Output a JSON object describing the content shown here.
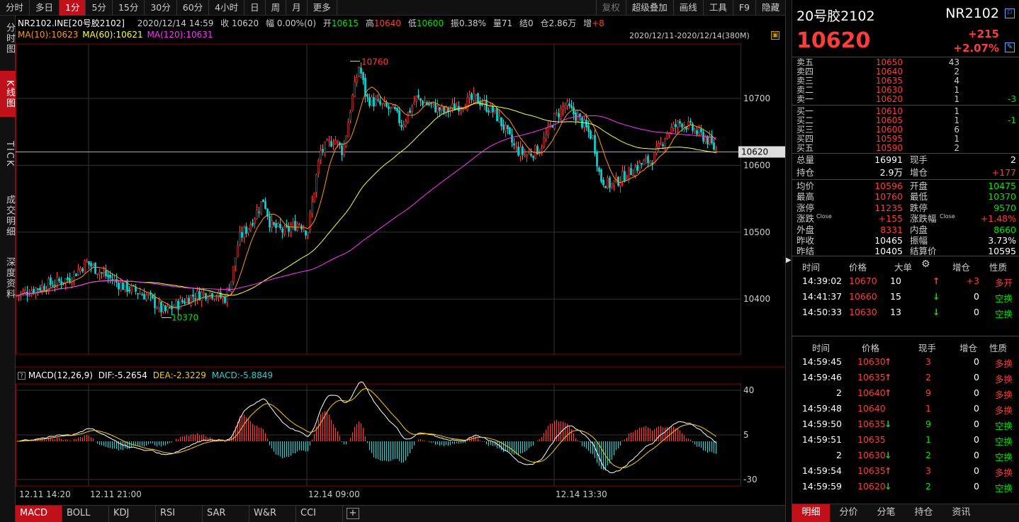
{
  "toolbar": {
    "periods": [
      "分时",
      "多日",
      "1分",
      "5分",
      "15分",
      "30分",
      "60分",
      "4小时",
      "日",
      "周",
      "月",
      "更多"
    ],
    "active_period": "1分",
    "right": [
      "复权",
      "超级叠加",
      "画线",
      "工具",
      "F9",
      "隐藏"
    ]
  },
  "left_tabs": [
    "分时图",
    "K线图",
    "TICK",
    "成交明细",
    "深度资料"
  ],
  "active_left_tab": "K线图",
  "info_line": {
    "symbol": "NR2102.INE[20号胶2102]",
    "datetime": "2020/12/14 14:59",
    "close_label": "收",
    "close": "10620",
    "change_label": "幅",
    "change": "0.00%(0)",
    "open_label": "开",
    "open": "10615",
    "high_label": "高",
    "high": "10640",
    "low_label": "低",
    "low": "10600",
    "amp_label": "振",
    "amp": "0.38%",
    "vol_label": "量",
    "vol": "71",
    "settle_label": "结",
    "settle": "0",
    "oi_label": "仓",
    "oi": "2.86万",
    "inc_label": "增",
    "inc": "+8"
  },
  "ma_line": {
    "ma10": "MA(10):10623",
    "ma60": "MA(60):10621",
    "ma120": "MA(120):10631",
    "ma10_color": "#ff9900",
    "ma60_color": "#ffff33",
    "ma120_color": "#ff33ff"
  },
  "date_range": "2020/12/11-2020/12/14(380M)",
  "lock_icon": "lock-icon",
  "price_axis": [
    "10700",
    "10600",
    "10500",
    "10400"
  ],
  "current_price_tag": "10620",
  "high_marker": "10760",
  "low_marker": "10370",
  "macd_info": {
    "title": "MACD(12,26,9)",
    "dif": "DIF:-5.2654",
    "dea": "DEA:-2.3229",
    "macd": "MACD:-5.8849"
  },
  "macd_axis": [
    "40",
    "5",
    "-30"
  ],
  "time_axis": [
    "12.11 14:20",
    "12.11 21:00",
    "12.14 09:00",
    "12.14 13:30"
  ],
  "bottom_tabs": [
    "MACD",
    "BOLL",
    "KDJ",
    "RSI",
    "SAR",
    "W&R",
    "CCI"
  ],
  "active_bottom_tab": "MACD",
  "quote": {
    "name": "20号胶2102",
    "code": "NR2102",
    "price": "10620",
    "change": "+215",
    "change_pct": "+2.07%",
    "edit_icon": "edit-icon"
  },
  "order_book": {
    "asks": [
      {
        "label": "卖五",
        "price": "10650",
        "vol": "43",
        "chg": ""
      },
      {
        "label": "卖四",
        "price": "10640",
        "vol": "2",
        "chg": ""
      },
      {
        "label": "卖三",
        "price": "10635",
        "vol": "4",
        "chg": ""
      },
      {
        "label": "卖二",
        "price": "10630",
        "vol": "1",
        "chg": ""
      },
      {
        "label": "卖一",
        "price": "10620",
        "vol": "1",
        "chg": "-3"
      }
    ],
    "bids": [
      {
        "label": "买一",
        "price": "10610",
        "vol": "1",
        "chg": ""
      },
      {
        "label": "买二",
        "price": "10605",
        "vol": "1",
        "chg": "-1"
      },
      {
        "label": "买三",
        "price": "10600",
        "vol": "6",
        "chg": ""
      },
      {
        "label": "买四",
        "price": "10595",
        "vol": "1",
        "chg": ""
      },
      {
        "label": "买五",
        "price": "10590",
        "vol": "2",
        "chg": ""
      }
    ]
  },
  "stats1": [
    {
      "l": "总量",
      "v": "16991",
      "l2": "现手",
      "v2": "2"
    },
    {
      "l": "持仓",
      "v": "2.9万",
      "l2": "增仓",
      "v2": "+177"
    }
  ],
  "stats2": [
    {
      "l": "均价",
      "v": "10596",
      "l2": "开盘",
      "v2": "10475"
    },
    {
      "l": "最高",
      "v": "10760",
      "l2": "最低",
      "v2": "10370"
    },
    {
      "l": "涨停",
      "v": "11235",
      "l2": "跌停",
      "v2": "9570"
    },
    {
      "l": "涨跌",
      "sub": "Close",
      "v": "+155",
      "l2": "涨跌幅",
      "sub2": "Close",
      "v2": "+1.48%"
    },
    {
      "l": "外盘",
      "v": "8331",
      "l2": "内盘",
      "v2": "8660"
    },
    {
      "l": "昨收",
      "v": "10465",
      "l2": "振幅",
      "v2": "3.73%"
    },
    {
      "l": "昨结",
      "v": "10405",
      "l2": "结算价",
      "v2": "10595"
    }
  ],
  "big_orders": {
    "headers": [
      "时间",
      "价格",
      "大单",
      "增仓",
      "性质"
    ],
    "settings_icon": "gear-icon",
    "rows": [
      {
        "t": "14:39:02",
        "p": "10670",
        "v": "10",
        "dir": "up",
        "inc": "+3",
        "nat": "多开"
      },
      {
        "t": "14:41:37",
        "p": "10660",
        "v": "15",
        "dir": "down",
        "inc": "0",
        "nat": "空换"
      },
      {
        "t": "14:50:33",
        "p": "10630",
        "v": "13",
        "dir": "down",
        "inc": "0",
        "nat": "空换"
      }
    ]
  },
  "ticks": {
    "headers": [
      "时间",
      "价格",
      "现手",
      "增仓",
      "性质"
    ],
    "rows": [
      {
        "t": "14:59:45",
        "p": "10630",
        "dir": "up",
        "v": "3",
        "inc": "0",
        "nat": "多换"
      },
      {
        "t": "14:59:46",
        "p": "10635",
        "dir": "up",
        "v": "2",
        "inc": "0",
        "nat": "多换"
      },
      {
        "t": "2",
        "p": "10640",
        "dir": "up",
        "v": "9",
        "inc": "0",
        "nat": "多换"
      },
      {
        "t": "14:59:48",
        "p": "10640",
        "dir": "",
        "v": "1",
        "inc": "0",
        "nat": "多换"
      },
      {
        "t": "14:59:50",
        "p": "10635",
        "dir": "down",
        "v": "9",
        "inc": "0",
        "nat": "空换"
      },
      {
        "t": "14:59:51",
        "p": "10635",
        "dir": "",
        "v": "1",
        "inc": "0",
        "nat": "空换"
      },
      {
        "t": "2",
        "p": "10630",
        "dir": "down",
        "v": "2",
        "inc": "0",
        "nat": "空换"
      },
      {
        "t": "14:59:54",
        "p": "10635",
        "dir": "up",
        "v": "3",
        "inc": "0",
        "nat": "多换"
      },
      {
        "t": "14:59:59",
        "p": "10620",
        "dir": "down",
        "v": "2",
        "inc": "0",
        "nat": "空换"
      }
    ]
  },
  "right_tabs": [
    "明细",
    "分价",
    "分笔",
    "持仓",
    "资讯"
  ],
  "active_right_tab": "明细"
}
